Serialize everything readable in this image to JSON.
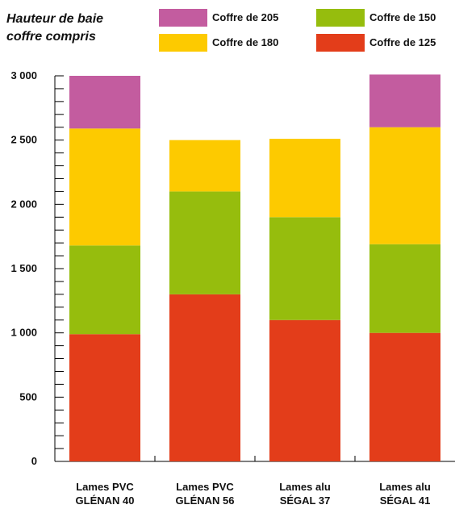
{
  "chart_data": {
    "type": "bar",
    "stacked": true,
    "title": "Hauteur de baie\ncoffre compris",
    "xlabel": "",
    "ylabel": "",
    "ylim": [
      0,
      3000
    ],
    "yticks": [
      0,
      500,
      1000,
      1500,
      2000,
      2500,
      3000
    ],
    "ytick_labels": [
      "0",
      "500",
      "1 000",
      "1 500",
      "2 000",
      "2 500",
      "3 000"
    ],
    "categories": [
      "Lames PVC\nGLÉNAN 40",
      "Lames PVC\nGLÉNAN 56",
      "Lames alu\nSÉGAL 37",
      "Lames alu\nSÉGAL 41"
    ],
    "series": [
      {
        "name": "Coffre de 125",
        "color": "#e33d1a",
        "values": [
          990,
          1300,
          1100,
          1000
        ]
      },
      {
        "name": "Coffre de 150",
        "color": "#96bd0d",
        "values": [
          690,
          800,
          800,
          690
        ]
      },
      {
        "name": "Coffre de 180",
        "color": "#fdca00",
        "values": [
          910,
          400,
          610,
          910
        ]
      },
      {
        "name": "Coffre de 205",
        "color": "#c35c9f",
        "values": [
          410,
          0,
          0,
          410
        ]
      }
    ],
    "legend_order": [
      "Coffre de 205",
      "Coffre de 150",
      "Coffre de 180",
      "Coffre de 125"
    ],
    "legend_position": "top",
    "grid": false
  }
}
